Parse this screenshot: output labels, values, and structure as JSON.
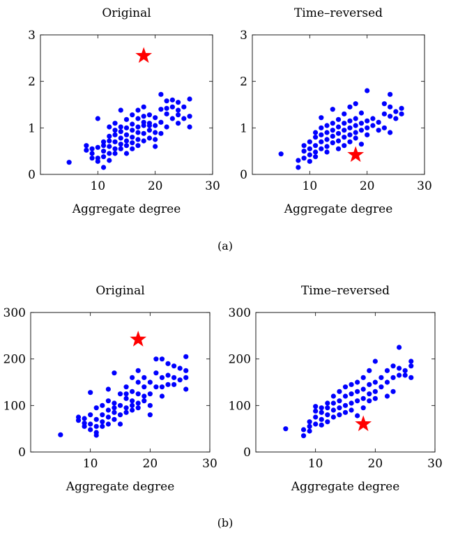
{
  "colors": {
    "points": "#0000ff",
    "star": "#ff0000",
    "axis": "#000000"
  },
  "figure": {
    "caption_a": "(a)",
    "caption_b": "(b)"
  },
  "chart_data": [
    {
      "panel": "a-original",
      "type": "scatter",
      "title": "Original",
      "xlabel": "Aggregate degree",
      "ylabel": "",
      "xlim": [
        0,
        30
      ],
      "ylim": [
        0,
        3
      ],
      "xticks": [
        10,
        20,
        30
      ],
      "yticks": [
        0,
        1,
        2,
        3
      ],
      "grid": false,
      "points": [
        [
          5,
          0.26
        ],
        [
          8,
          0.62
        ],
        [
          8,
          0.52
        ],
        [
          9,
          0.55
        ],
        [
          9,
          0.35
        ],
        [
          9,
          0.45
        ],
        [
          10,
          0.58
        ],
        [
          10,
          0.35
        ],
        [
          10,
          0.28
        ],
        [
          10,
          1.2
        ],
        [
          11,
          0.62
        ],
        [
          11,
          0.5
        ],
        [
          11,
          0.38
        ],
        [
          11,
          0.7
        ],
        [
          11,
          0.15
        ],
        [
          12,
          0.72
        ],
        [
          12,
          0.6
        ],
        [
          12,
          0.45
        ],
        [
          12,
          0.82
        ],
        [
          12,
          0.3
        ],
        [
          12,
          1.02
        ],
        [
          13,
          0.7
        ],
        [
          13,
          0.85
        ],
        [
          13,
          0.55
        ],
        [
          13,
          0.95
        ],
        [
          13,
          1.1
        ],
        [
          13,
          0.45
        ],
        [
          14,
          0.78
        ],
        [
          14,
          0.65
        ],
        [
          14,
          0.92
        ],
        [
          14,
          0.55
        ],
        [
          14,
          1.38
        ],
        [
          14,
          1.02
        ],
        [
          15,
          0.85
        ],
        [
          15,
          0.72
        ],
        [
          15,
          0.62
        ],
        [
          15,
          1.0
        ],
        [
          15,
          0.45
        ],
        [
          15,
          1.18
        ],
        [
          16,
          0.95
        ],
        [
          16,
          0.8
        ],
        [
          16,
          0.68
        ],
        [
          16,
          1.08
        ],
        [
          16,
          1.28
        ],
        [
          16,
          0.55
        ],
        [
          17,
          0.9
        ],
        [
          17,
          1.02
        ],
        [
          17,
          0.75
        ],
        [
          17,
          1.2
        ],
        [
          17,
          1.38
        ],
        [
          17,
          0.62
        ],
        [
          18,
          1.05
        ],
        [
          18,
          0.88
        ],
        [
          18,
          1.25
        ],
        [
          18,
          0.72
        ],
        [
          18,
          1.45
        ],
        [
          18,
          1.12
        ],
        [
          19,
          0.95
        ],
        [
          19,
          1.1
        ],
        [
          19,
          0.78
        ],
        [
          19,
          1.28
        ],
        [
          19,
          1.05
        ],
        [
          20,
          0.75
        ],
        [
          20,
          1.05
        ],
        [
          20,
          1.22
        ],
        [
          20,
          0.6
        ],
        [
          20,
          0.9
        ],
        [
          21,
          1.72
        ],
        [
          21,
          1.4
        ],
        [
          21,
          1.12
        ],
        [
          21,
          0.88
        ],
        [
          22,
          1.58
        ],
        [
          22,
          1.3
        ],
        [
          22,
          1.02
        ],
        [
          22,
          1.42
        ],
        [
          23,
          1.6
        ],
        [
          23,
          1.2
        ],
        [
          23,
          1.45
        ],
        [
          24,
          1.28
        ],
        [
          24,
          1.55
        ],
        [
          24,
          1.1
        ],
        [
          24,
          1.38
        ],
        [
          25,
          1.2
        ],
        [
          25,
          1.45
        ],
        [
          26,
          1.02
        ],
        [
          26,
          1.25
        ],
        [
          26,
          1.62
        ]
      ],
      "highlight": {
        "x": 18,
        "y": 2.55,
        "marker": "star"
      }
    },
    {
      "panel": "a-time-reversed",
      "type": "scatter",
      "title": "Time–reversed",
      "xlabel": "Aggregate degree",
      "ylabel": "",
      "xlim": [
        0,
        30
      ],
      "ylim": [
        0,
        3
      ],
      "xticks": [
        10,
        20,
        30
      ],
      "yticks": [
        0,
        1,
        2,
        3
      ],
      "grid": false,
      "points": [
        [
          5,
          0.44
        ],
        [
          8,
          0.15
        ],
        [
          8,
          0.3
        ],
        [
          9,
          0.35
        ],
        [
          9,
          0.5
        ],
        [
          9,
          0.62
        ],
        [
          10,
          0.42
        ],
        [
          10,
          0.55
        ],
        [
          10,
          0.28
        ],
        [
          10,
          0.7
        ],
        [
          11,
          0.48
        ],
        [
          11,
          0.62
        ],
        [
          11,
          0.8
        ],
        [
          11,
          0.38
        ],
        [
          11,
          0.9
        ],
        [
          12,
          0.55
        ],
        [
          12,
          0.7
        ],
        [
          12,
          0.85
        ],
        [
          12,
          1.0
        ],
        [
          12,
          1.22
        ],
        [
          13,
          0.6
        ],
        [
          13,
          0.75
        ],
        [
          13,
          0.9
        ],
        [
          13,
          1.05
        ],
        [
          13,
          0.48
        ],
        [
          14,
          0.68
        ],
        [
          14,
          0.82
        ],
        [
          14,
          0.95
        ],
        [
          14,
          1.1
        ],
        [
          14,
          1.4
        ],
        [
          15,
          0.72
        ],
        [
          15,
          0.88
        ],
        [
          15,
          1.02
        ],
        [
          15,
          1.18
        ],
        [
          15,
          0.55
        ],
        [
          16,
          0.8
        ],
        [
          16,
          0.95
        ],
        [
          16,
          1.1
        ],
        [
          16,
          0.62
        ],
        [
          16,
          1.3
        ],
        [
          17,
          0.85
        ],
        [
          17,
          1.0
        ],
        [
          17,
          1.15
        ],
        [
          17,
          1.45
        ],
        [
          17,
          0.7
        ],
        [
          18,
          0.9
        ],
        [
          18,
          1.05
        ],
        [
          18,
          1.2
        ],
        [
          18,
          1.52
        ],
        [
          18,
          0.78
        ],
        [
          19,
          0.95
        ],
        [
          19,
          1.1
        ],
        [
          19,
          1.32
        ],
        [
          19,
          0.65
        ],
        [
          20,
          1.0
        ],
        [
          20,
          1.15
        ],
        [
          20,
          1.8
        ],
        [
          20,
          0.85
        ],
        [
          21,
          1.05
        ],
        [
          21,
          1.2
        ],
        [
          22,
          1.12
        ],
        [
          22,
          0.95
        ],
        [
          23,
          1.3
        ],
        [
          23,
          1.52
        ],
        [
          23,
          1.0
        ],
        [
          24,
          1.25
        ],
        [
          24,
          1.45
        ],
        [
          24,
          1.72
        ],
        [
          24,
          0.9
        ],
        [
          25,
          1.35
        ],
        [
          25,
          1.2
        ],
        [
          26,
          1.42
        ],
        [
          26,
          1.3
        ]
      ],
      "highlight": {
        "x": 18,
        "y": 0.42,
        "marker": "star"
      }
    },
    {
      "panel": "b-original",
      "type": "scatter",
      "title": "Original",
      "xlabel": "Aggregate degree",
      "ylabel": "",
      "xlim": [
        0,
        30
      ],
      "ylim": [
        0,
        300
      ],
      "xticks": [
        10,
        20,
        30
      ],
      "yticks": [
        0,
        100,
        200,
        300
      ],
      "grid": false,
      "points": [
        [
          5,
          37
        ],
        [
          8,
          75
        ],
        [
          8,
          68
        ],
        [
          9,
          62
        ],
        [
          9,
          55
        ],
        [
          9,
          72
        ],
        [
          10,
          128
        ],
        [
          10,
          60
        ],
        [
          10,
          48
        ],
        [
          10,
          80
        ],
        [
          11,
          95
        ],
        [
          11,
          70
        ],
        [
          11,
          55
        ],
        [
          11,
          36
        ],
        [
          11,
          42
        ],
        [
          12,
          80
        ],
        [
          12,
          100
        ],
        [
          12,
          65
        ],
        [
          12,
          55
        ],
        [
          13,
          135
        ],
        [
          13,
          110
        ],
        [
          13,
          90
        ],
        [
          13,
          75
        ],
        [
          13,
          60
        ],
        [
          14,
          170
        ],
        [
          14,
          105
        ],
        [
          14,
          95
        ],
        [
          14,
          85
        ],
        [
          14,
          70
        ],
        [
          15,
          125
        ],
        [
          15,
          100
        ],
        [
          15,
          80
        ],
        [
          15,
          60
        ],
        [
          16,
          140
        ],
        [
          16,
          115
        ],
        [
          16,
          95
        ],
        [
          16,
          85
        ],
        [
          16,
          125
        ],
        [
          17,
          160
        ],
        [
          17,
          130
        ],
        [
          17,
          110
        ],
        [
          17,
          90
        ],
        [
          17,
          100
        ],
        [
          18,
          175
        ],
        [
          18,
          150
        ],
        [
          18,
          125
        ],
        [
          18,
          105
        ],
        [
          18,
          95
        ],
        [
          19,
          160
        ],
        [
          19,
          140
        ],
        [
          19,
          120
        ],
        [
          19,
          110
        ],
        [
          20,
          150
        ],
        [
          20,
          125
        ],
        [
          20,
          80
        ],
        [
          20,
          100
        ],
        [
          21,
          200
        ],
        [
          21,
          170
        ],
        [
          21,
          140
        ],
        [
          22,
          200
        ],
        [
          22,
          160
        ],
        [
          22,
          140
        ],
        [
          22,
          120
        ],
        [
          23,
          190
        ],
        [
          23,
          165
        ],
        [
          23,
          145
        ],
        [
          24,
          185
        ],
        [
          24,
          160
        ],
        [
          24,
          145
        ],
        [
          25,
          180
        ],
        [
          25,
          155
        ],
        [
          26,
          205
        ],
        [
          26,
          175
        ],
        [
          26,
          160
        ],
        [
          26,
          135
        ]
      ],
      "highlight": {
        "x": 18,
        "y": 242,
        "marker": "star"
      }
    },
    {
      "panel": "b-time-reversed",
      "type": "scatter",
      "title": "Time–reversed",
      "xlabel": "Aggregate degree",
      "ylabel": "",
      "xlim": [
        0,
        30
      ],
      "ylim": [
        0,
        300
      ],
      "xticks": [
        10,
        20,
        30
      ],
      "yticks": [
        0,
        100,
        200,
        300
      ],
      "grid": false,
      "points": [
        [
          5,
          50
        ],
        [
          8,
          35
        ],
        [
          8,
          48
        ],
        [
          9,
          55
        ],
        [
          9,
          45
        ],
        [
          9,
          65
        ],
        [
          10,
          60
        ],
        [
          10,
          75
        ],
        [
          10,
          88
        ],
        [
          10,
          98
        ],
        [
          11,
          70
        ],
        [
          11,
          85
        ],
        [
          11,
          95
        ],
        [
          11,
          58
        ],
        [
          12,
          80
        ],
        [
          12,
          95
        ],
        [
          12,
          65
        ],
        [
          12,
          105
        ],
        [
          13,
          90
        ],
        [
          13,
          105
        ],
        [
          13,
          120
        ],
        [
          13,
          75
        ],
        [
          14,
          95
        ],
        [
          14,
          110
        ],
        [
          14,
          130
        ],
        [
          14,
          80
        ],
        [
          15,
          100
        ],
        [
          15,
          120
        ],
        [
          15,
          140
        ],
        [
          15,
          85
        ],
        [
          16,
          105
        ],
        [
          16,
          125
        ],
        [
          16,
          145
        ],
        [
          16,
          90
        ],
        [
          17,
          110
        ],
        [
          17,
          130
        ],
        [
          17,
          150
        ],
        [
          17,
          78
        ],
        [
          18,
          115
        ],
        [
          18,
          135
        ],
        [
          18,
          160
        ],
        [
          18,
          95
        ],
        [
          19,
          125
        ],
        [
          19,
          145
        ],
        [
          19,
          175
        ],
        [
          19,
          110
        ],
        [
          20,
          130
        ],
        [
          20,
          150
        ],
        [
          20,
          195
        ],
        [
          20,
          115
        ],
        [
          21,
          140
        ],
        [
          21,
          160
        ],
        [
          22,
          150
        ],
        [
          22,
          175
        ],
        [
          22,
          120
        ],
        [
          23,
          160
        ],
        [
          23,
          185
        ],
        [
          23,
          130
        ],
        [
          24,
          165
        ],
        [
          24,
          180
        ],
        [
          24,
          225
        ],
        [
          25,
          175
        ],
        [
          25,
          165
        ],
        [
          26,
          185
        ],
        [
          26,
          160
        ],
        [
          26,
          195
        ]
      ],
      "highlight": {
        "x": 18,
        "y": 60,
        "marker": "star"
      }
    }
  ]
}
